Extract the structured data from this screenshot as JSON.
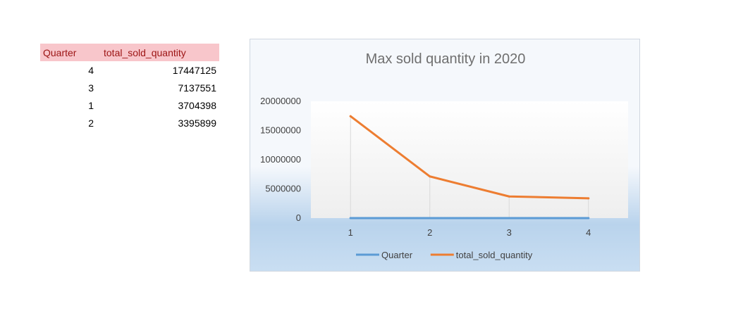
{
  "table": {
    "headers": [
      "Quarter",
      "total_sold_quantity"
    ],
    "rows": [
      [
        "4",
        "17447125"
      ],
      [
        "3",
        "7137551"
      ],
      [
        "1",
        "3704398"
      ],
      [
        "2",
        "3395899"
      ]
    ]
  },
  "chart_data": {
    "type": "line",
    "title": "Max sold quantity in 2020",
    "x": [
      1,
      2,
      3,
      4
    ],
    "categories": [
      "1",
      "2",
      "3",
      "4"
    ],
    "series": [
      {
        "name": "Quarter",
        "values": [
          4,
          3,
          1,
          2
        ],
        "color": "#5b9bd5"
      },
      {
        "name": "total_sold_quantity",
        "values": [
          17447125,
          7137551,
          3704398,
          3395899
        ],
        "color": "#ed7d31"
      }
    ],
    "ylim": [
      0,
      20000000
    ],
    "yticks": [
      0,
      5000000,
      10000000,
      15000000,
      20000000
    ],
    "ytick_labels": [
      "0",
      "5000000",
      "10000000",
      "15000000",
      "20000000"
    ],
    "xlabel": "",
    "ylabel": "",
    "grid": false,
    "legend": "bottom"
  }
}
